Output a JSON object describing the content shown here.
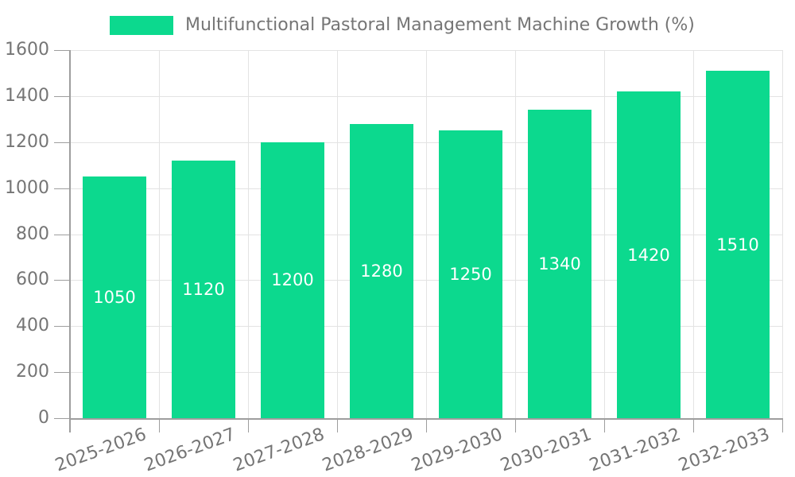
{
  "chart_data": {
    "type": "bar",
    "title": "Multifunctional Pastoral Management Machine Growth (%)",
    "categories": [
      "2025-2026",
      "2026-2027",
      "2027-2028",
      "2028-2029",
      "2029-2030",
      "2030-2031",
      "2031-2032",
      "2032-2033"
    ],
    "values": [
      1050,
      1120,
      1200,
      1280,
      1250,
      1340,
      1420,
      1510
    ],
    "series": [
      {
        "name": "Multifunctional Pastoral Management Machine Growth (%)",
        "values": [
          1050,
          1120,
          1200,
          1280,
          1250,
          1340,
          1420,
          1510
        ]
      }
    ],
    "xlabel": "",
    "ylabel": "",
    "ylim": [
      0,
      1600
    ],
    "yticks": [
      0,
      200,
      400,
      600,
      800,
      1000,
      1200,
      1400,
      1600
    ],
    "grid": "horizontal gridlines at y ticks and vertical gridlines at category boundaries",
    "legend_position": "top",
    "value_labels_position": "inside-center",
    "xtick_label_rotation_deg": -20,
    "colors": {
      "bar": "#0cd98e",
      "value_label": "#ffffff",
      "text": "#757575",
      "grid": "#e3e3e3",
      "axis": "#9e9e9e",
      "background": "#ffffff"
    }
  }
}
